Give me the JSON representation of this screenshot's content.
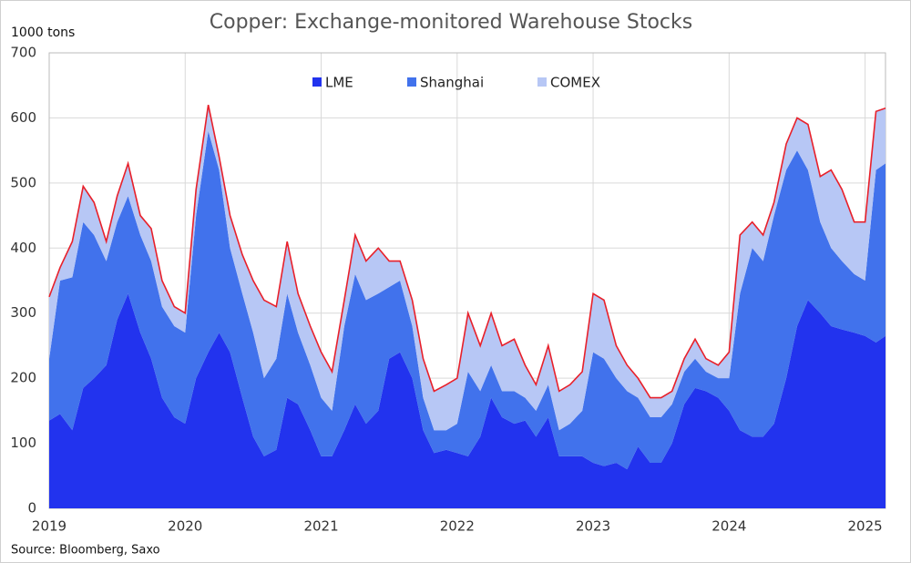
{
  "chart_data": {
    "type": "stacked_area",
    "title": "Copper: Exchange-monitored Warehouse Stocks",
    "y_label": "1000 tons",
    "source": "Source: Bloomberg, Saxo",
    "x": [
      2019.0,
      2019.08,
      2019.17,
      2019.25,
      2019.33,
      2019.42,
      2019.5,
      2019.58,
      2019.67,
      2019.75,
      2019.83,
      2019.92,
      2020.0,
      2020.08,
      2020.17,
      2020.25,
      2020.33,
      2020.42,
      2020.5,
      2020.58,
      2020.67,
      2020.75,
      2020.83,
      2020.92,
      2021.0,
      2021.08,
      2021.17,
      2021.25,
      2021.33,
      2021.42,
      2021.5,
      2021.58,
      2021.67,
      2021.75,
      2021.83,
      2021.92,
      2022.0,
      2022.08,
      2022.17,
      2022.25,
      2022.33,
      2022.42,
      2022.5,
      2022.58,
      2022.67,
      2022.75,
      2022.83,
      2022.92,
      2023.0,
      2023.08,
      2023.17,
      2023.25,
      2023.33,
      2023.42,
      2023.5,
      2023.58,
      2023.67,
      2023.75,
      2023.83,
      2023.92,
      2024.0,
      2024.08,
      2024.17,
      2024.25,
      2024.33,
      2024.42,
      2024.5,
      2024.58,
      2024.67,
      2024.75,
      2024.83,
      2024.92,
      2025.0,
      2025.08,
      2025.15
    ],
    "series": [
      {
        "name": "LME",
        "color": "#2233ee",
        "values": [
          135,
          145,
          120,
          185,
          200,
          220,
          290,
          330,
          270,
          230,
          170,
          140,
          130,
          200,
          240,
          270,
          240,
          170,
          110,
          80,
          90,
          170,
          160,
          120,
          80,
          80,
          120,
          160,
          130,
          150,
          230,
          240,
          200,
          120,
          85,
          90,
          85,
          80,
          110,
          170,
          140,
          130,
          135,
          110,
          140,
          80,
          80,
          80,
          70,
          65,
          70,
          60,
          95,
          70,
          70,
          100,
          160,
          185,
          180,
          170,
          150,
          120,
          110,
          110,
          130,
          200,
          280,
          320,
          300,
          280,
          275,
          270,
          265,
          255,
          265
        ]
      },
      {
        "name": "Shanghai",
        "color": "#4172ec",
        "values": [
          95,
          205,
          235,
          255,
          220,
          160,
          150,
          150,
          150,
          150,
          140,
          140,
          140,
          250,
          340,
          250,
          160,
          160,
          160,
          120,
          140,
          160,
          110,
          100,
          90,
          70,
          160,
          200,
          190,
          180,
          110,
          110,
          80,
          50,
          35,
          30,
          45,
          130,
          70,
          50,
          40,
          50,
          35,
          40,
          50,
          40,
          50,
          70,
          170,
          165,
          130,
          120,
          75,
          70,
          70,
          60,
          50,
          45,
          30,
          30,
          50,
          210,
          290,
          270,
          320,
          320,
          270,
          200,
          140,
          120,
          105,
          90,
          85,
          265,
          265
        ]
      },
      {
        "name": "COMEX",
        "color": "#b7c7f5",
        "values": [
          95,
          20,
          55,
          55,
          50,
          30,
          40,
          50,
          30,
          50,
          40,
          30,
          30,
          40,
          40,
          20,
          50,
          60,
          80,
          120,
          80,
          80,
          60,
          60,
          70,
          60,
          40,
          60,
          60,
          70,
          40,
          30,
          40,
          60,
          60,
          70,
          70,
          90,
          70,
          80,
          70,
          80,
          50,
          40,
          60,
          60,
          60,
          60,
          90,
          90,
          50,
          40,
          30,
          30,
          30,
          20,
          20,
          30,
          20,
          20,
          40,
          90,
          40,
          40,
          20,
          40,
          50,
          70,
          70,
          120,
          110,
          80,
          90,
          90,
          85
        ]
      }
    ],
    "total_line_color": "#e8202a",
    "xlim": [
      2019,
      2025.15
    ],
    "xticks": [
      2019,
      2020,
      2021,
      2022,
      2023,
      2024,
      2025
    ],
    "ylim": [
      0,
      700
    ],
    "yticks": [
      0,
      100,
      200,
      300,
      400,
      500,
      600,
      700
    ],
    "grid": true,
    "legend": "top"
  }
}
